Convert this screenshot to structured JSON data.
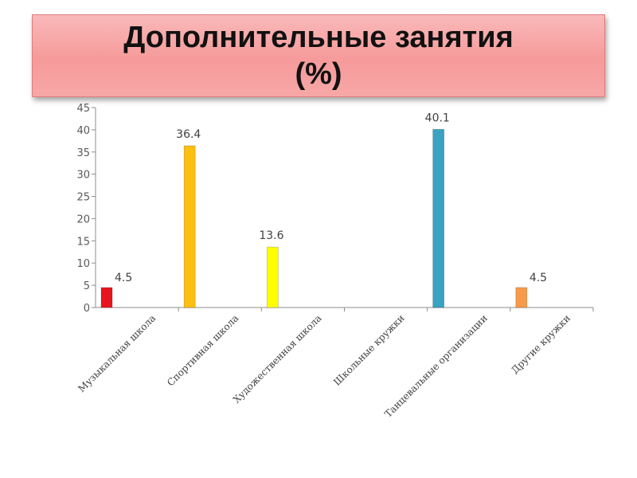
{
  "title": {
    "line1": "Дополнительные занятия",
    "line2": "(%)"
  },
  "chart_data": {
    "type": "bar",
    "title": "Дополнительные занятия (%)",
    "categories": [
      "Музыкальная школа",
      "Спортивная школа",
      "Художественная школа",
      "Школьные кружки",
      "Танцевальные организации",
      "Другие кружки"
    ],
    "values": [
      4.5,
      36.4,
      13.6,
      null,
      40.1,
      4.5
    ],
    "data_labels": [
      "4.5",
      "36.4",
      "13.6",
      "",
      "40.1",
      "4.5"
    ],
    "colors": [
      "#e8161b",
      "#fdbf10",
      "#ffff00",
      "#000000",
      "#3aa2c3",
      "#f79a4a"
    ],
    "ylim": [
      0,
      45
    ],
    "yticks": [
      0,
      5,
      10,
      15,
      20,
      25,
      30,
      35,
      40,
      45
    ],
    "xlabel": "",
    "ylabel": "",
    "grid": false,
    "legend": "none"
  }
}
